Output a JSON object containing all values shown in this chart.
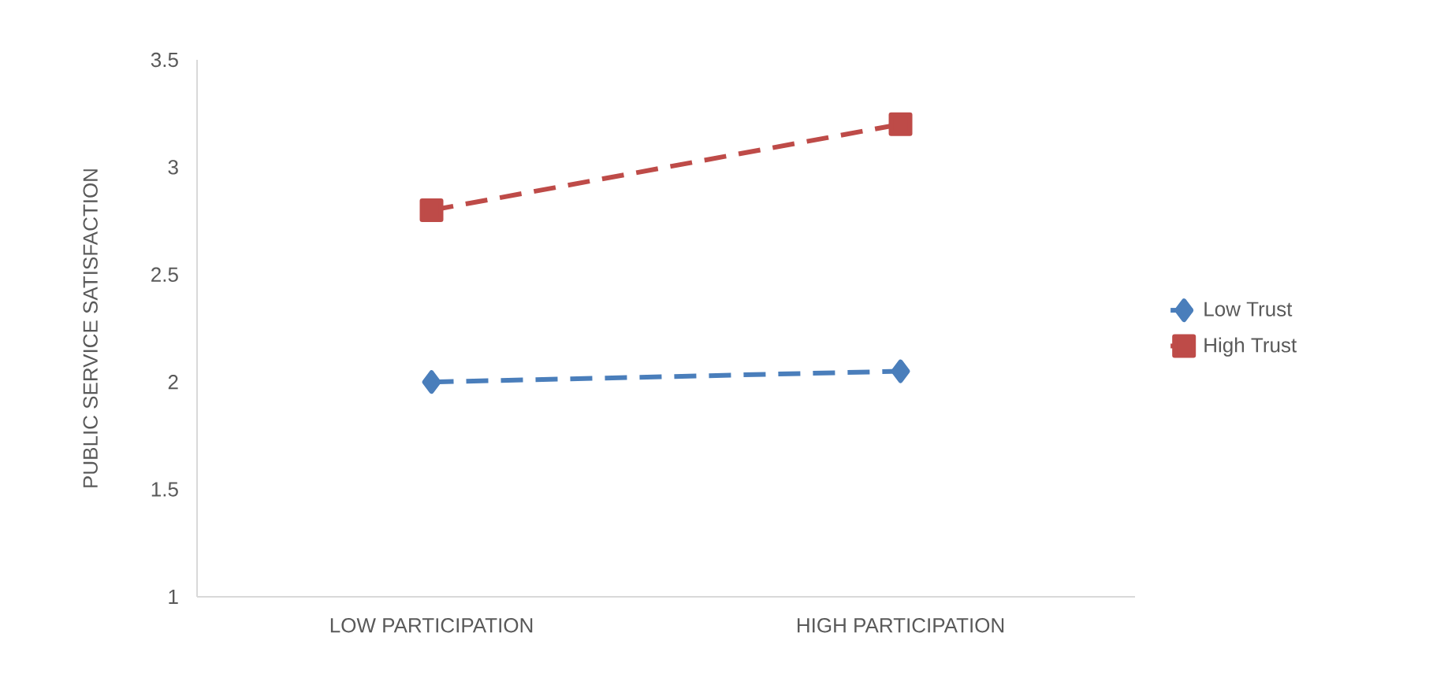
{
  "chart_data": {
    "type": "line",
    "ylabel": "PUBLIC SERVICE   SATISFACTION",
    "categories": [
      "LOW PARTICIPATION",
      "HIGH PARTICIPATION"
    ],
    "series": [
      {
        "name": "Low Trust",
        "color": "#4a7ebb",
        "values": [
          2.0,
          2.05
        ],
        "marker": "diamond"
      },
      {
        "name": "High Trust",
        "color": "#be4b48",
        "values": [
          2.8,
          3.2
        ],
        "marker": "square"
      }
    ],
    "ylim": [
      1,
      3.5
    ],
    "yticks": [
      1,
      1.5,
      2,
      2.5,
      3,
      3.5
    ],
    "grid": false,
    "legend": "right",
    "line_style": "dashed"
  }
}
